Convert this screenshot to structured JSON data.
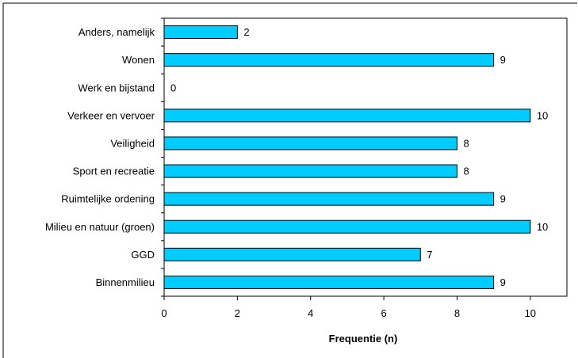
{
  "chart_data": {
    "type": "bar",
    "orientation": "horizontal",
    "categories": [
      "Anders, namelijk",
      "Wonen",
      "Werk en bijstand",
      "Verkeer en vervoer",
      "Veiligheid",
      "Sport en recreatie",
      "Ruimtelijke ordening",
      "Milieu en natuur (groen)",
      "GGD",
      "Binnenmilieu"
    ],
    "values": [
      2,
      9,
      0,
      10,
      8,
      8,
      9,
      10,
      7,
      9
    ],
    "title": "",
    "xlabel": "Frequentie (n)",
    "ylabel": "",
    "xlim": [
      0,
      11
    ],
    "xticks": [
      0,
      2,
      4,
      6,
      8,
      10
    ],
    "grid": false,
    "legend": "none",
    "bar_color": "#00CCFF",
    "bar_edge_color": "#000000"
  }
}
